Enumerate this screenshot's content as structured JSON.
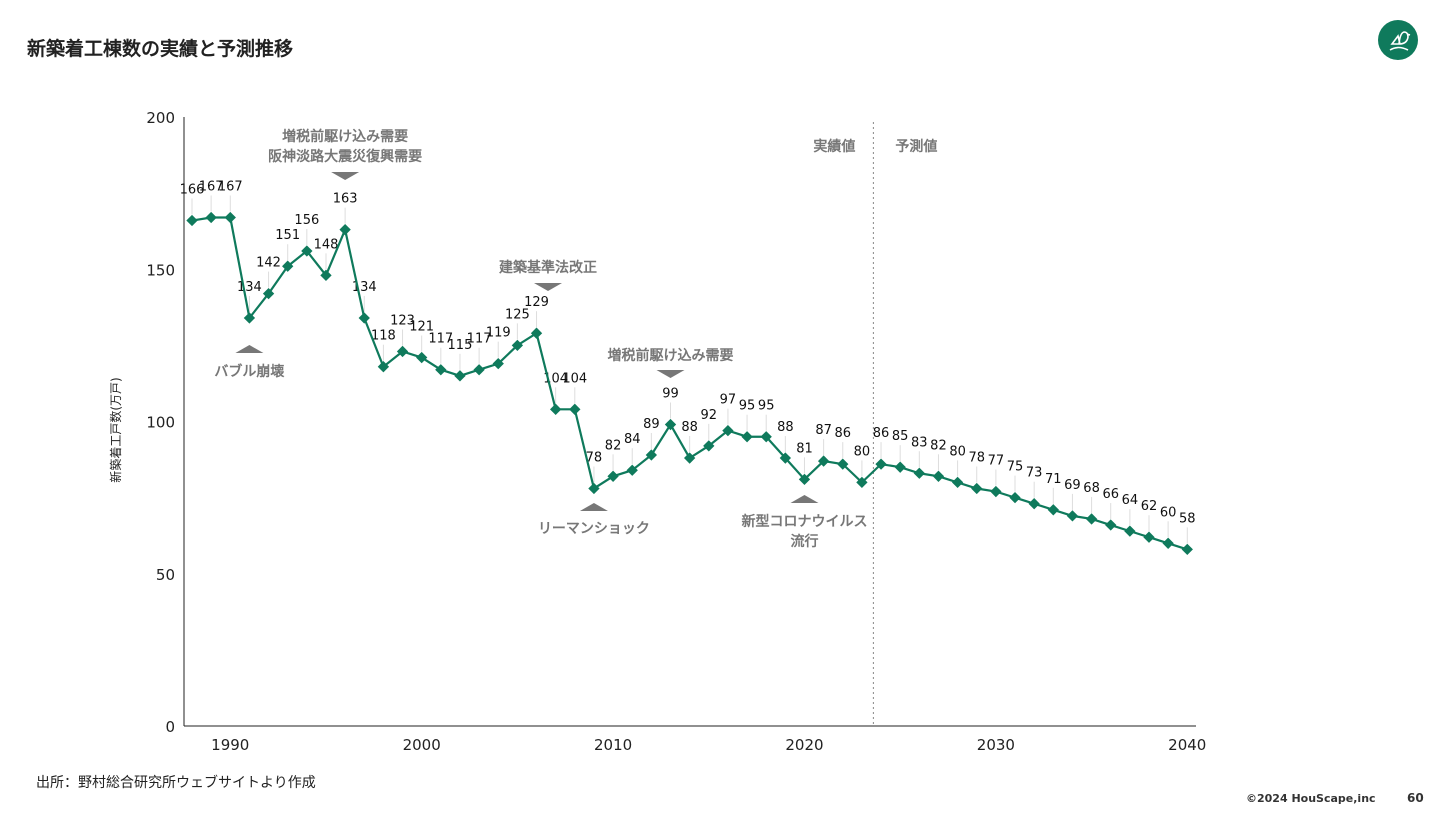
{
  "header": {
    "title": "新築着工棟数の実績と予測推移"
  },
  "footer": {
    "source": "出所：野村総合研究所ウェブサイトより作成",
    "copyright": "©2024  HouScape,inc",
    "page": "60"
  },
  "colors": {
    "line": "#0f7a5c",
    "annotation": "#777777"
  },
  "chart_data": {
    "type": "line",
    "title": "新築着工棟数の実績と予測推移",
    "ylabel": "新築着工戸数(万戸)",
    "ylim": [
      0,
      200
    ],
    "yticks": [
      0,
      50,
      100,
      150,
      200
    ],
    "xlim": [
      1988,
      2040
    ],
    "xticks": [
      1990,
      2000,
      2010,
      2020,
      2030,
      2040
    ],
    "x": [
      1988,
      1989,
      1990,
      1991,
      1992,
      1993,
      1994,
      1995,
      1996,
      1997,
      1998,
      1999,
      2000,
      2001,
      2002,
      2003,
      2004,
      2005,
      2006,
      2007,
      2008,
      2009,
      2010,
      2011,
      2012,
      2013,
      2014,
      2015,
      2016,
      2017,
      2018,
      2019,
      2020,
      2021,
      2022,
      2023,
      2024,
      2025,
      2026,
      2027,
      2028,
      2029,
      2030,
      2031,
      2032,
      2033,
      2034,
      2035,
      2036,
      2037,
      2038,
      2039,
      2040
    ],
    "values": [
      166,
      167,
      167,
      134,
      142,
      151,
      156,
      148,
      163,
      134,
      118,
      123,
      121,
      117,
      115,
      117,
      119,
      125,
      129,
      104,
      104,
      78,
      82,
      84,
      89,
      99,
      88,
      92,
      97,
      95,
      95,
      88,
      81,
      87,
      86,
      80,
      86,
      85,
      83,
      82,
      80,
      78,
      77,
      75,
      73,
      71,
      69,
      68,
      66,
      64,
      62,
      60,
      58
    ],
    "divider": {
      "year": 2023.6,
      "left_label": "実績値",
      "right_label": "予測値"
    },
    "annotations": [
      {
        "year": 1996,
        "lines": [
          "増税前駆け込み需要",
          "阪神淡路大震災復興需要"
        ],
        "dir": "down"
      },
      {
        "year": 1991,
        "lines": [
          "バブル崩壊"
        ],
        "dir": "up"
      },
      {
        "year": 2006.6,
        "lines": [
          "建築基準法改正"
        ],
        "dir": "down"
      },
      {
        "year": 2009,
        "lines": [
          "リーマンショック"
        ],
        "dir": "up"
      },
      {
        "year": 2013,
        "lines": [
          "増税前駆け込み需要"
        ],
        "dir": "down"
      },
      {
        "year": 2020,
        "lines": [
          "新型コロナウイルス",
          "流行"
        ],
        "dir": "up"
      }
    ]
  }
}
